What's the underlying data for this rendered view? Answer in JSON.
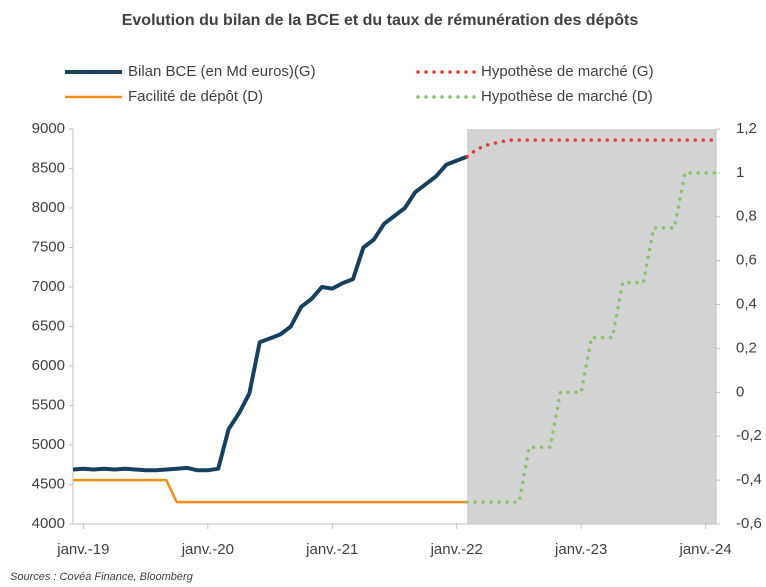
{
  "chart_data": {
    "type": "line",
    "title": "Evolution du bilan de la BCE et du taux de rémunération des dépôts",
    "source": "Sources : Covéa Finance, Bloomberg",
    "xlim": [
      "2018-12",
      "2024-02"
    ],
    "xticks": [
      {
        "value": "2019-01",
        "label": "janv.-19"
      },
      {
        "value": "2020-01",
        "label": "janv.-20"
      },
      {
        "value": "2021-01",
        "label": "janv.-21"
      },
      {
        "value": "2022-01",
        "label": "janv.-22"
      },
      {
        "value": "2023-01",
        "label": "janv.-23"
      },
      {
        "value": "2024-01",
        "label": "janv.-24"
      }
    ],
    "ylim": [
      4000,
      9000
    ],
    "yticks": [
      4000,
      4500,
      5000,
      5500,
      6000,
      6500,
      7000,
      7500,
      8000,
      8500,
      9000
    ],
    "y2lim": [
      -0.6,
      1.2
    ],
    "y2ticks": [
      {
        "value": -0.6,
        "label": "-0,6"
      },
      {
        "value": -0.4,
        "label": "-0,4"
      },
      {
        "value": -0.2,
        "label": "-0,2"
      },
      0,
      {
        "value": 0.2,
        "label": "0,2"
      },
      {
        "value": 0.4,
        "label": "0,4"
      },
      {
        "value": 0.6,
        "label": "0,6"
      },
      {
        "value": 0.8,
        "label": "0,8"
      },
      1,
      {
        "value": 1.2,
        "label": "1,2"
      }
    ],
    "shade": {
      "from": "2022-02",
      "to": "2024-02",
      "color": "#d3d3d3"
    },
    "series": [
      {
        "name": "Bilan BCE (en Md euros)(G)",
        "color": "#17405e",
        "style": "solid",
        "width": 4,
        "x": [
          "2018-12",
          "2019-01",
          "2019-02",
          "2019-03",
          "2019-04",
          "2019-05",
          "2019-06",
          "2019-07",
          "2019-08",
          "2019-09",
          "2019-10",
          "2019-11",
          "2019-12",
          "2020-01",
          "2020-02",
          "2020-03",
          "2020-04",
          "2020-05",
          "2020-06",
          "2020-07",
          "2020-08",
          "2020-09",
          "2020-10",
          "2020-11",
          "2020-12",
          "2021-01",
          "2021-02",
          "2021-03",
          "2021-04",
          "2021-05",
          "2021-06",
          "2021-07",
          "2021-08",
          "2021-09",
          "2021-10",
          "2021-11",
          "2021-12",
          "2022-02"
        ],
        "values": [
          4690,
          4700,
          4690,
          4700,
          4690,
          4700,
          4690,
          4680,
          4680,
          4690,
          4700,
          4710,
          4680,
          4680,
          4700,
          5200,
          5400,
          5650,
          6300,
          6350,
          6400,
          6500,
          6750,
          6850,
          7000,
          6980,
          7050,
          7100,
          7500,
          7600,
          7800,
          7900,
          8000,
          8200,
          8300,
          8400,
          8550,
          8650
        ]
      },
      {
        "name": "Hypothèse de marché (G)",
        "color": "#e03a3a",
        "style": "dotted",
        "width": 3.5,
        "x": [
          "2022-02",
          "2022-03",
          "2022-04",
          "2022-05",
          "2022-06",
          "2022-09",
          "2022-12",
          "2023-03",
          "2023-06",
          "2023-09",
          "2023-12",
          "2024-02"
        ],
        "values": [
          8650,
          8750,
          8800,
          8830,
          8860,
          8860,
          8860,
          8860,
          8860,
          8860,
          8860,
          8860
        ]
      },
      {
        "name": "Facilité de dépôt (D)",
        "color": "#f28e1c",
        "style": "solid",
        "width": 2.5,
        "axis": "y2",
        "x": [
          "2018-12",
          "2019-09",
          "2019-10",
          "2022-02"
        ],
        "values": [
          -0.4,
          -0.4,
          -0.5,
          -0.5
        ]
      },
      {
        "name": "Hypothèse de marché (D)",
        "color": "#8cc36b",
        "style": "dotted",
        "width": 3.5,
        "axis": "y2",
        "x": [
          "2022-02",
          "2022-03",
          "2022-04",
          "2022-05",
          "2022-06",
          "2022-07",
          "2022-08",
          "2022-09",
          "2022-10",
          "2022-11",
          "2022-12",
          "2023-01",
          "2023-02",
          "2023-03",
          "2023-04",
          "2023-05",
          "2023-06",
          "2023-07",
          "2023-08",
          "2023-09",
          "2023-10",
          "2023-11",
          "2023-12",
          "2024-01",
          "2024-02"
        ],
        "values": [
          -0.5,
          -0.5,
          -0.5,
          -0.5,
          -0.5,
          -0.5,
          -0.25,
          -0.25,
          -0.25,
          0,
          0,
          0,
          0.25,
          0.25,
          0.25,
          0.5,
          0.5,
          0.5,
          0.75,
          0.75,
          0.75,
          1,
          1,
          1,
          1
        ]
      }
    ]
  }
}
